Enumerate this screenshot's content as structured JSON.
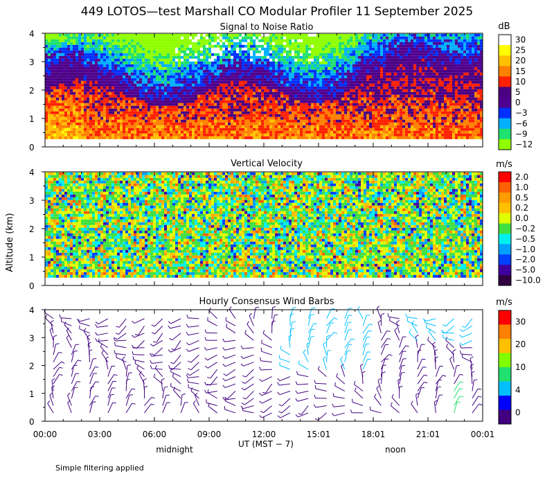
{
  "page": {
    "title": "449 LOTOS—test Marshall CO Modular Profiler 11 September 2025",
    "ylabel": "Altitude (km)",
    "xlabel": "UT  (MST − 7)",
    "midnight": "midnight",
    "noon": "noon",
    "footnote": "Simple filtering applied"
  },
  "chart_data": [
    {
      "type": "heatmap",
      "title": "Signal to Noise Ratio",
      "ylim": [
        0,
        4
      ],
      "yticks": [
        "0",
        "1",
        "2",
        "3",
        "4"
      ],
      "xticks": [
        "00:00",
        "03:00",
        "06:00",
        "09:00",
        "12:00",
        "15:01",
        "18:01",
        "21:01",
        "00:01"
      ],
      "colorbar": {
        "unit": "dB",
        "levels": [
          "30",
          "25",
          "20",
          "15",
          "10",
          "5",
          "0",
          "−3",
          "−6",
          "−9",
          "−12"
        ],
        "colors": [
          "#ffffff",
          "#ffff00",
          "#ffc000",
          "#ff8000",
          "#ff2000",
          "#4a0080",
          "#500090",
          "#0030ff",
          "#00b0ff",
          "#20e070",
          "#90ff00"
        ]
      }
    },
    {
      "type": "heatmap",
      "title": "Vertical Velocity",
      "ylim": [
        0,
        4
      ],
      "yticks": [
        "0",
        "1",
        "2",
        "3",
        "4"
      ],
      "colorbar": {
        "unit": "m/s",
        "levels": [
          "2.0",
          "1.0",
          "0.5",
          "0.2",
          "0.0",
          "−0.2",
          "−0.5",
          "−1.0",
          "−2.0",
          "−5.0",
          "−10.0"
        ],
        "colors": [
          "#ff0000",
          "#ff6000",
          "#ff9c00",
          "#ffc000",
          "#e0ff00",
          "#40e040",
          "#00f0f0",
          "#00a0ff",
          "#0040ff",
          "#4000a0",
          "#300040"
        ]
      }
    },
    {
      "type": "wind-barbs",
      "title": "Hourly Consensus Wind Barbs",
      "ylim": [
        0,
        4
      ],
      "yticks": [
        "0",
        "1",
        "2",
        "3",
        "4"
      ],
      "colorbar": {
        "unit": "m/s",
        "levels": [
          "30",
          "20",
          "10",
          "4",
          "0"
        ],
        "colors": [
          "#ff0000",
          "#ff8000",
          "#ffc000",
          "#80ff00",
          "#20e070",
          "#00c0ff",
          "#0000ff",
          "#400080"
        ]
      }
    }
  ]
}
